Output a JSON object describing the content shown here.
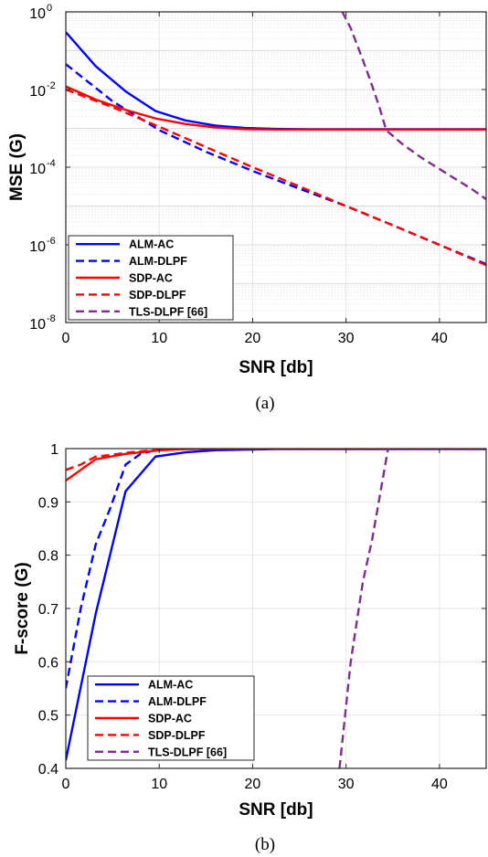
{
  "chart_data": [
    {
      "type": "line",
      "caption": "(a)",
      "xlabel": "SNR [db]",
      "ylabel": "MSE (G)",
      "yscale": "log",
      "xlim": [
        0,
        45
      ],
      "ylim": [
        1e-08,
        1
      ],
      "xticks": [
        "0",
        "10",
        "20",
        "30",
        "40"
      ],
      "yticks": [
        {
          "base": "10",
          "exp": "-8"
        },
        {
          "base": "10",
          "exp": "-6"
        },
        {
          "base": "10",
          "exp": "-4"
        },
        {
          "base": "10",
          "exp": "-2"
        },
        {
          "base": "10",
          "exp": "0"
        }
      ],
      "grid": true,
      "legend_position": "bottom-left",
      "series": [
        {
          "name": "ALM-AC",
          "color": "#0000ff",
          "style": "solid",
          "x": [
            0,
            3.2,
            6.4,
            9.6,
            12.8,
            16,
            19.2,
            22.4,
            25.6,
            28.8,
            32,
            35.2,
            38.4,
            41.6,
            45
          ],
          "y": [
            0.3,
            0.04,
            0.009,
            0.0028,
            0.0016,
            0.00118,
            0.00102,
            0.00097,
            0.00095,
            0.00095,
            0.00095,
            0.00095,
            0.00095,
            0.00095,
            0.00095
          ]
        },
        {
          "name": "ALM-DLPF",
          "color": "#0000ff",
          "style": "dashed",
          "x": [
            0,
            5,
            10,
            15,
            20,
            25,
            30,
            35,
            40,
            45
          ],
          "y": [
            0.045,
            0.005,
            0.0009,
            0.00025,
            8e-05,
            2.8e-05,
            1e-05,
            3.2e-06,
            1e-06,
            3.2e-07
          ]
        },
        {
          "name": "SDP-AC",
          "color": "#ff0000",
          "style": "solid",
          "x": [
            0,
            3.2,
            6.4,
            9.6,
            12.8,
            16,
            19.2,
            22.4,
            25.6,
            28.8,
            32,
            35.2,
            38.4,
            41.6,
            45
          ],
          "y": [
            0.012,
            0.0055,
            0.003,
            0.0018,
            0.0013,
            0.00105,
            0.00095,
            0.00093,
            0.00093,
            0.00093,
            0.00093,
            0.00093,
            0.00093,
            0.00093,
            0.00093
          ]
        },
        {
          "name": "SDP-DLPF",
          "color": "#ff0000",
          "style": "dashed",
          "x": [
            0,
            5,
            10,
            15,
            20,
            25,
            30,
            35,
            40,
            45
          ],
          "y": [
            0.01,
            0.0035,
            0.0011,
            0.00033,
            0.0001,
            3.2e-05,
            1e-05,
            3.2e-06,
            1e-06,
            3e-07
          ]
        },
        {
          "name": "TLS-DLPF [66]",
          "color": "#7e2f8e",
          "style": "dashed",
          "x": [
            29.6,
            30.5,
            31.5,
            32.5,
            33.5,
            34.3,
            36,
            38,
            40,
            42,
            43.5,
            45
          ],
          "y": [
            1,
            0.38,
            0.09,
            0.02,
            0.004,
            0.0009,
            0.0004,
            0.00018,
            9e-05,
            4.5e-05,
            2.7e-05,
            1.5e-05
          ]
        }
      ]
    },
    {
      "type": "line",
      "caption": "(b)",
      "xlabel": "SNR [db]",
      "ylabel": "F-score (G)",
      "xlim": [
        0,
        45
      ],
      "ylim": [
        0.4,
        1
      ],
      "xticks": [
        "0",
        "10",
        "20",
        "30",
        "40"
      ],
      "yticks": [
        "0.4",
        "0.5",
        "0.6",
        "0.7",
        "0.8",
        "0.9",
        "1"
      ],
      "grid": true,
      "legend_position": "bottom-left",
      "series": [
        {
          "name": "ALM-AC",
          "color": "#0000ff",
          "style": "solid",
          "x": [
            0,
            3.2,
            6.4,
            9.6,
            12.8,
            16,
            19.2,
            22.4,
            25.6,
            28.8,
            32,
            35.2,
            38.4,
            41.6,
            45
          ],
          "y": [
            0.415,
            0.69,
            0.92,
            0.985,
            0.993,
            0.997,
            0.998,
            0.999,
            0.999,
            0.999,
            0.999,
            0.999,
            0.999,
            0.999,
            0.999
          ]
        },
        {
          "name": "ALM-DLPF",
          "color": "#0000ff",
          "style": "dashed",
          "x": [
            0,
            1.6,
            3.2,
            4.8,
            6.4,
            8,
            9.6,
            11.2,
            12.8,
            16,
            19.2,
            22.4,
            25.6,
            28.8,
            32,
            35.2,
            38.4,
            41.6,
            45
          ],
          "y": [
            0.55,
            0.7,
            0.82,
            0.89,
            0.97,
            0.99,
            0.997,
            0.999,
            1,
            1,
            1,
            1,
            1,
            1,
            1,
            1,
            1,
            1,
            1
          ]
        },
        {
          "name": "SDP-AC",
          "color": "#ff0000",
          "style": "solid",
          "x": [
            0,
            1.6,
            3.2,
            4.8,
            6.4,
            8,
            9.6,
            11.2,
            12.8,
            16,
            19.2,
            22.4,
            25.6,
            28.8,
            32,
            35.2,
            38.4,
            41.6,
            45
          ],
          "y": [
            0.94,
            0.96,
            0.98,
            0.985,
            0.99,
            0.993,
            0.996,
            0.998,
            0.999,
            1,
            1,
            1,
            1,
            1,
            1,
            1,
            1,
            1,
            1
          ]
        },
        {
          "name": "SDP-DLPF",
          "color": "#ff0000",
          "style": "dashed",
          "x": [
            0,
            1.6,
            3.2,
            4.8,
            6.4,
            8,
            9.6,
            11.2,
            12.8,
            16,
            19.2,
            22.4,
            25.6,
            28.8,
            32,
            35.2,
            38.4,
            41.6,
            45
          ],
          "y": [
            0.96,
            0.97,
            0.985,
            0.988,
            0.992,
            0.995,
            0.997,
            0.998,
            0.999,
            1,
            1,
            1,
            1,
            1,
            1,
            1,
            1,
            1,
            1
          ]
        },
        {
          "name": "TLS-DLPF [66]",
          "color": "#7e2f8e",
          "style": "dashed",
          "x": [
            29.3,
            30.5,
            31.8,
            32.8,
            33.7,
            34.5,
            36,
            38,
            40,
            42,
            45
          ],
          "y": [
            0.4,
            0.6,
            0.75,
            0.83,
            0.92,
            1,
            1,
            1,
            1,
            1,
            1
          ]
        }
      ]
    }
  ]
}
